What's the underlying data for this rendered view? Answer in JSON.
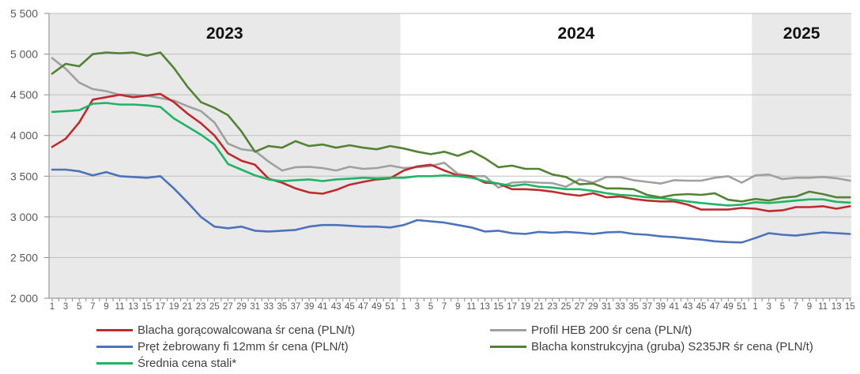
{
  "chart_data": {
    "type": "line",
    "title": "",
    "xlabel": "",
    "ylabel": "",
    "ylim": [
      2000,
      5500
    ],
    "y_tick_step": 500,
    "y_tick_labels": [
      "5 500",
      "5 000",
      "4 500",
      "4 000",
      "3 500",
      "3 000",
      "2 500",
      "2 000"
    ],
    "grid": true,
    "legend_position": "bottom",
    "band_color": "#e9e9e9",
    "axis_text_color": "#595959",
    "gridline_color": "#bfbfbf",
    "axis_line_color": "#898989",
    "year_bands": [
      {
        "label": "2023",
        "weeks": 52,
        "shaded": true
      },
      {
        "label": "2024",
        "weeks": 52,
        "shaded": false
      },
      {
        "label": "2025",
        "weeks": 15,
        "shaded": true
      }
    ],
    "x_note": "week numbers, labels every 2nd week",
    "x_labels": [
      "1",
      "3",
      "5",
      "7",
      "9",
      "11",
      "13",
      "15",
      "17",
      "19",
      "21",
      "23",
      "25",
      "27",
      "29",
      "31",
      "33",
      "35",
      "37",
      "39",
      "41",
      "43",
      "45",
      "47",
      "49",
      "51",
      "1",
      "3",
      "5",
      "7",
      "9",
      "11",
      "13",
      "15",
      "17",
      "19",
      "21",
      "23",
      "25",
      "27",
      "29",
      "31",
      "33",
      "35",
      "37",
      "39",
      "41",
      "43",
      "45",
      "47",
      "49",
      "51",
      "1",
      "3",
      "5",
      "7",
      "9",
      "11",
      "13",
      "15"
    ],
    "series": [
      {
        "name": "Blacha gorącowalcowana śr cena (PLN/t)",
        "color": "#be2b2f",
        "legend_column": 1,
        "values": [
          3860,
          3960,
          4160,
          4440,
          4470,
          4500,
          4470,
          4490,
          4510,
          4410,
          4270,
          4150,
          4000,
          3780,
          3690,
          3640,
          3470,
          3420,
          3350,
          3300,
          3285,
          3330,
          3395,
          3430,
          3460,
          3475,
          3570,
          3620,
          3640,
          3570,
          3510,
          3500,
          3420,
          3410,
          3340,
          3340,
          3330,
          3310,
          3280,
          3260,
          3290,
          3240,
          3250,
          3220,
          3200,
          3190,
          3190,
          3150,
          3090,
          3090,
          3090,
          3110,
          3100,
          3070,
          3080,
          3120,
          3120,
          3130,
          3100,
          3130
        ]
      },
      {
        "name": "Pręt żebrowany fi 12mm  śr cena (PLN/t)",
        "color": "#4c72b8",
        "legend_column": 1,
        "values": [
          3580,
          3580,
          3560,
          3510,
          3550,
          3500,
          3490,
          3480,
          3500,
          3350,
          3180,
          3000,
          2880,
          2860,
          2880,
          2830,
          2820,
          2830,
          2840,
          2880,
          2900,
          2900,
          2890,
          2880,
          2880,
          2870,
          2900,
          2960,
          2945,
          2930,
          2900,
          2870,
          2820,
          2830,
          2800,
          2790,
          2815,
          2805,
          2815,
          2805,
          2790,
          2810,
          2815,
          2790,
          2780,
          2760,
          2750,
          2735,
          2720,
          2700,
          2690,
          2685,
          2740,
          2800,
          2780,
          2770,
          2790,
          2810,
          2800,
          2790
        ]
      },
      {
        "name": "Średnia cena stali*",
        "color": "#21b366",
        "legend_column": 1,
        "values": [
          4290,
          4300,
          4310,
          4390,
          4400,
          4380,
          4380,
          4370,
          4350,
          4210,
          4110,
          4010,
          3890,
          3650,
          3580,
          3510,
          3460,
          3440,
          3450,
          3460,
          3440,
          3460,
          3470,
          3480,
          3475,
          3480,
          3480,
          3500,
          3500,
          3510,
          3500,
          3480,
          3440,
          3410,
          3380,
          3400,
          3370,
          3360,
          3340,
          3340,
          3320,
          3290,
          3270,
          3260,
          3240,
          3230,
          3210,
          3190,
          3170,
          3155,
          3140,
          3150,
          3180,
          3170,
          3185,
          3200,
          3215,
          3215,
          3185,
          3175
        ]
      },
      {
        "name": "Profil HEB 200 śr cena (PLN/t)",
        "color": "#a0a0a0",
        "legend_column": 2,
        "values": [
          4950,
          4820,
          4650,
          4570,
          4545,
          4500,
          4500,
          4490,
          4460,
          4430,
          4360,
          4300,
          4160,
          3900,
          3830,
          3810,
          3680,
          3570,
          3610,
          3615,
          3600,
          3570,
          3615,
          3590,
          3600,
          3630,
          3600,
          3610,
          3625,
          3665,
          3530,
          3500,
          3500,
          3360,
          3420,
          3430,
          3420,
          3415,
          3370,
          3460,
          3420,
          3490,
          3490,
          3450,
          3430,
          3410,
          3450,
          3445,
          3445,
          3480,
          3500,
          3420,
          3510,
          3520,
          3465,
          3480,
          3480,
          3490,
          3475,
          3445
        ]
      },
      {
        "name": "Blacha konstrukcyjna (gruba) S235JR śr cena (PLN/t)",
        "color": "#548235",
        "legend_column": 2,
        "values": [
          4760,
          4880,
          4850,
          5000,
          5020,
          5010,
          5020,
          4980,
          5020,
          4830,
          4600,
          4410,
          4340,
          4250,
          4050,
          3800,
          3870,
          3850,
          3930,
          3870,
          3890,
          3850,
          3880,
          3850,
          3830,
          3870,
          3840,
          3800,
          3770,
          3800,
          3750,
          3810,
          3720,
          3610,
          3630,
          3590,
          3590,
          3520,
          3490,
          3400,
          3410,
          3350,
          3350,
          3340,
          3270,
          3240,
          3270,
          3280,
          3270,
          3290,
          3210,
          3190,
          3220,
          3200,
          3235,
          3250,
          3310,
          3280,
          3240,
          3240
        ]
      }
    ]
  }
}
